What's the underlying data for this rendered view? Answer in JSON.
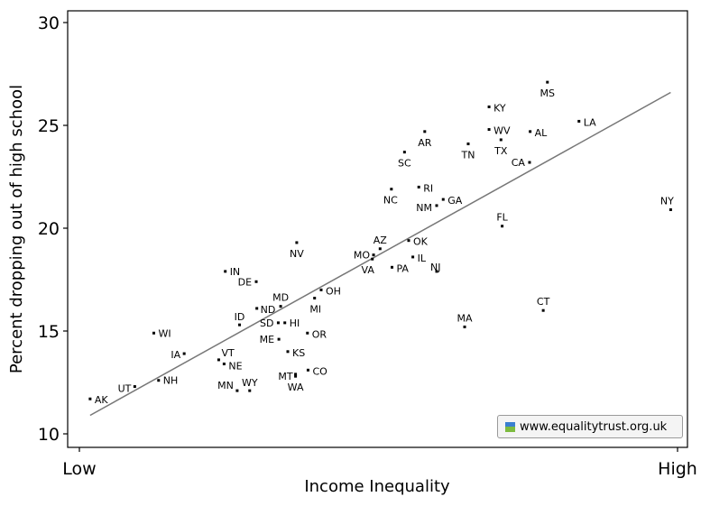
{
  "chart_data": {
    "type": "scatter",
    "title": "",
    "xlabel": "Income Inequality",
    "ylabel": "Percent dropping out of high school",
    "x_tick_labels": [
      "Low",
      "High"
    ],
    "xlim": [
      0,
      100
    ],
    "ylim": [
      10,
      30
    ],
    "y_ticks": [
      10,
      15,
      20,
      25,
      30
    ],
    "grid": false,
    "trend_line": {
      "x": [
        1.8,
        99.3
      ],
      "y": [
        10.9,
        26.6
      ]
    },
    "points": [
      {
        "label": "AK",
        "x": 1.8,
        "y": 11.7
      },
      {
        "label": "UT",
        "x": 9.3,
        "y": 12.3
      },
      {
        "label": "NH",
        "x": 13.3,
        "y": 12.6
      },
      {
        "label": "WI",
        "x": 12.5,
        "y": 14.9
      },
      {
        "label": "IA",
        "x": 17.6,
        "y": 13.9
      },
      {
        "label": "VT",
        "x": 23.4,
        "y": 13.6
      },
      {
        "label": "NE",
        "x": 24.3,
        "y": 13.4
      },
      {
        "label": "MN",
        "x": 26.5,
        "y": 12.1
      },
      {
        "label": "WY",
        "x": 28.6,
        "y": 12.1
      },
      {
        "label": "IN",
        "x": 24.5,
        "y": 17.9
      },
      {
        "label": "DE",
        "x": 29.7,
        "y": 17.4
      },
      {
        "label": "ID",
        "x": 26.9,
        "y": 15.3
      },
      {
        "label": "ND",
        "x": 29.8,
        "y": 16.1
      },
      {
        "label": "MD",
        "x": 33.8,
        "y": 16.2
      },
      {
        "label": "SD",
        "x": 33.4,
        "y": 15.4
      },
      {
        "label": "HI",
        "x": 34.5,
        "y": 15.4
      },
      {
        "label": "ME",
        "x": 33.5,
        "y": 14.6
      },
      {
        "label": "KS",
        "x": 35.0,
        "y": 14.0
      },
      {
        "label": "OR",
        "x": 38.3,
        "y": 14.9
      },
      {
        "label": "MT",
        "x": 36.3,
        "y": 12.9
      },
      {
        "label": "WA",
        "x": 36.3,
        "y": 12.8
      },
      {
        "label": "CO",
        "x": 38.4,
        "y": 13.1
      },
      {
        "label": "NV",
        "x": 36.5,
        "y": 19.3
      },
      {
        "label": "OH",
        "x": 40.6,
        "y": 17.0
      },
      {
        "label": "MI",
        "x": 39.5,
        "y": 16.6
      },
      {
        "label": "AZ",
        "x": 50.5,
        "y": 19.0
      },
      {
        "label": "MO",
        "x": 49.4,
        "y": 18.7
      },
      {
        "label": "VA",
        "x": 49.2,
        "y": 18.5
      },
      {
        "label": "PA",
        "x": 52.5,
        "y": 18.1
      },
      {
        "label": "OK",
        "x": 55.3,
        "y": 19.4
      },
      {
        "label": "IL",
        "x": 56.0,
        "y": 18.6
      },
      {
        "label": "NJ",
        "x": 60.0,
        "y": 17.9
      },
      {
        "label": "NC",
        "x": 52.4,
        "y": 21.9
      },
      {
        "label": "RI",
        "x": 57.0,
        "y": 22.0
      },
      {
        "label": "GA",
        "x": 61.1,
        "y": 21.4
      },
      {
        "label": "NM",
        "x": 60.0,
        "y": 21.1
      },
      {
        "label": "SC",
        "x": 54.6,
        "y": 23.7
      },
      {
        "label": "AR",
        "x": 58.0,
        "y": 24.7
      },
      {
        "label": "TN",
        "x": 65.3,
        "y": 24.1
      },
      {
        "label": "KY",
        "x": 68.8,
        "y": 25.9
      },
      {
        "label": "WV",
        "x": 68.8,
        "y": 24.8
      },
      {
        "label": "TX",
        "x": 70.8,
        "y": 24.3
      },
      {
        "label": "AL",
        "x": 75.7,
        "y": 24.7
      },
      {
        "label": "CA",
        "x": 75.6,
        "y": 23.2
      },
      {
        "label": "MS",
        "x": 78.6,
        "y": 27.1
      },
      {
        "label": "LA",
        "x": 83.9,
        "y": 25.2
      },
      {
        "label": "FL",
        "x": 71.0,
        "y": 20.1
      },
      {
        "label": "MA",
        "x": 64.7,
        "y": 15.2
      },
      {
        "label": "CT",
        "x": 77.9,
        "y": 16.0
      },
      {
        "label": "NY",
        "x": 99.3,
        "y": 20.9
      }
    ]
  },
  "badge": {
    "text": "www.equalitytrust.org.uk",
    "logo_top_color": "#3a7fd0",
    "logo_bottom_color": "#7dbb3f"
  }
}
